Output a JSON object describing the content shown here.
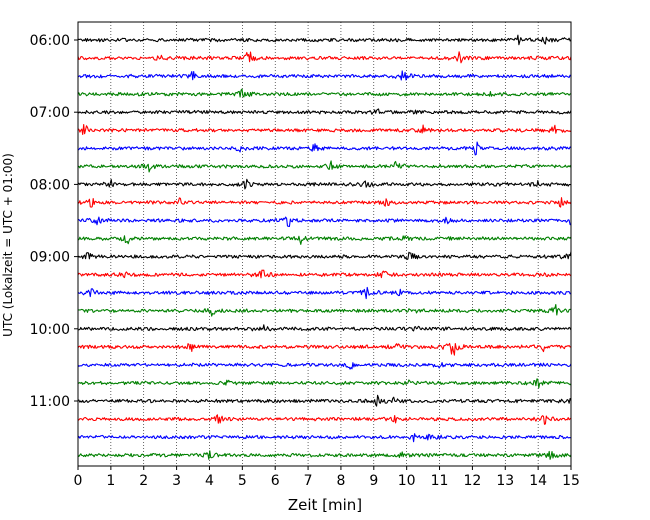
{
  "chart_data": {
    "type": "line",
    "title": "",
    "xlabel": "Zeit  [min]",
    "ylabel": "UTC (Lokalzeit = UTC + 01:00)",
    "xlim": [
      0,
      15
    ],
    "x_ticks": [
      "0",
      "1",
      "2",
      "3",
      "4",
      "5",
      "6",
      "7",
      "8",
      "9",
      "10",
      "11",
      "12",
      "13",
      "14",
      "15"
    ],
    "y_tick_labels": [
      "06:00",
      "07:00",
      "08:00",
      "09:00",
      "10:00",
      "11:00"
    ],
    "traces_per_hour": 4,
    "trace_interval_min": 15,
    "grid": "vertical-dotted",
    "legend": "none",
    "colors": [
      "#000000",
      "#ff0000",
      "#0000ff",
      "#008000"
    ],
    "traces": [
      {
        "time": "06:00",
        "color": "#000000",
        "spikes": [
          [
            13.4,
            0.6
          ],
          [
            14.2,
            0.5
          ],
          [
            14.8,
            0.4
          ]
        ]
      },
      {
        "time": "06:15",
        "color": "#ff0000",
        "spikes": [
          [
            2.5,
            0.7
          ],
          [
            5.2,
            1.4
          ],
          [
            11.6,
            1.2
          ]
        ]
      },
      {
        "time": "06:30",
        "color": "#0000ff",
        "spikes": [
          [
            3.5,
            0.9
          ],
          [
            9.9,
            1.4
          ]
        ]
      },
      {
        "time": "06:45",
        "color": "#008000",
        "spikes": [
          [
            5.0,
            1.0
          ],
          [
            12.6,
            0.4
          ]
        ]
      },
      {
        "time": "07:00",
        "color": "#000000",
        "spikes": [
          [
            9.1,
            0.6
          ],
          [
            10.2,
            0.4
          ]
        ]
      },
      {
        "time": "07:15",
        "color": "#ff0000",
        "spikes": [
          [
            0.2,
            1.0
          ],
          [
            10.5,
            0.6
          ],
          [
            14.5,
            0.8
          ]
        ]
      },
      {
        "time": "07:30",
        "color": "#0000ff",
        "spikes": [
          [
            4.9,
            0.6
          ],
          [
            7.2,
            0.7
          ],
          [
            12.1,
            1.3
          ]
        ]
      },
      {
        "time": "07:45",
        "color": "#008000",
        "spikes": [
          [
            2.2,
            1.1
          ],
          [
            7.7,
            0.9
          ],
          [
            9.7,
            1.0
          ]
        ]
      },
      {
        "time": "08:00",
        "color": "#000000",
        "spikes": [
          [
            1.0,
            1.0
          ],
          [
            5.1,
            0.8
          ],
          [
            8.8,
            0.9
          ],
          [
            14.0,
            0.6
          ]
        ]
      },
      {
        "time": "08:15",
        "color": "#ff0000",
        "spikes": [
          [
            0.4,
            1.0
          ],
          [
            3.1,
            0.6
          ],
          [
            9.4,
            0.7
          ],
          [
            14.7,
            0.7
          ]
        ]
      },
      {
        "time": "08:30",
        "color": "#0000ff",
        "spikes": [
          [
            0.6,
            1.0
          ],
          [
            6.4,
            1.1
          ],
          [
            11.2,
            0.5
          ],
          [
            15.0,
            0.6
          ]
        ]
      },
      {
        "time": "08:45",
        "color": "#008000",
        "spikes": [
          [
            1.5,
            0.9
          ],
          [
            6.8,
            1.1
          ],
          [
            9.9,
            0.6
          ]
        ]
      },
      {
        "time": "09:00",
        "color": "#000000",
        "spikes": [
          [
            0.3,
            0.9
          ],
          [
            10.1,
            1.3
          ],
          [
            15.0,
            1.3
          ]
        ]
      },
      {
        "time": "09:15",
        "color": "#ff0000",
        "spikes": [
          [
            1.4,
            0.6
          ],
          [
            5.6,
            1.0
          ],
          [
            9.3,
            0.7
          ],
          [
            14.1,
            0.5
          ]
        ]
      },
      {
        "time": "09:30",
        "color": "#0000ff",
        "spikes": [
          [
            0.4,
            0.8
          ],
          [
            8.8,
            1.2
          ],
          [
            9.8,
            0.5
          ]
        ]
      },
      {
        "time": "09:45",
        "color": "#008000",
        "spikes": [
          [
            4.1,
            0.9
          ],
          [
            10.3,
            0.7
          ],
          [
            14.5,
            1.2
          ]
        ]
      },
      {
        "time": "10:00",
        "color": "#000000",
        "spikes": [
          [
            5.6,
            1.0
          ],
          [
            10.3,
            0.6
          ]
        ]
      },
      {
        "time": "10:15",
        "color": "#ff0000",
        "spikes": [
          [
            3.4,
            1.1
          ],
          [
            9.7,
            0.7
          ],
          [
            11.4,
            2.2
          ],
          [
            14.2,
            1.0
          ]
        ]
      },
      {
        "time": "10:30",
        "color": "#0000ff",
        "spikes": [
          [
            8.3,
            0.6
          ],
          [
            11.0,
            0.5
          ],
          [
            12.8,
            0.4
          ]
        ]
      },
      {
        "time": "10:45",
        "color": "#008000",
        "spikes": [
          [
            4.5,
            0.7
          ],
          [
            10.0,
            0.6
          ],
          [
            14.0,
            1.0
          ]
        ]
      },
      {
        "time": "11:00",
        "color": "#000000",
        "spikes": [
          [
            9.1,
            0.9
          ],
          [
            9.6,
            0.6
          ],
          [
            15.0,
            0.6
          ]
        ]
      },
      {
        "time": "11:15",
        "color": "#ff0000",
        "spikes": [
          [
            4.3,
            1.0
          ],
          [
            9.6,
            0.8
          ],
          [
            14.2,
            0.9
          ]
        ]
      },
      {
        "time": "11:30",
        "color": "#0000ff",
        "spikes": [
          [
            10.2,
            0.6
          ],
          [
            10.7,
            0.8
          ]
        ]
      },
      {
        "time": "11:45",
        "color": "#008000",
        "spikes": [
          [
            4.0,
            0.8
          ],
          [
            9.8,
            0.7
          ],
          [
            14.4,
            0.9
          ]
        ]
      }
    ]
  }
}
